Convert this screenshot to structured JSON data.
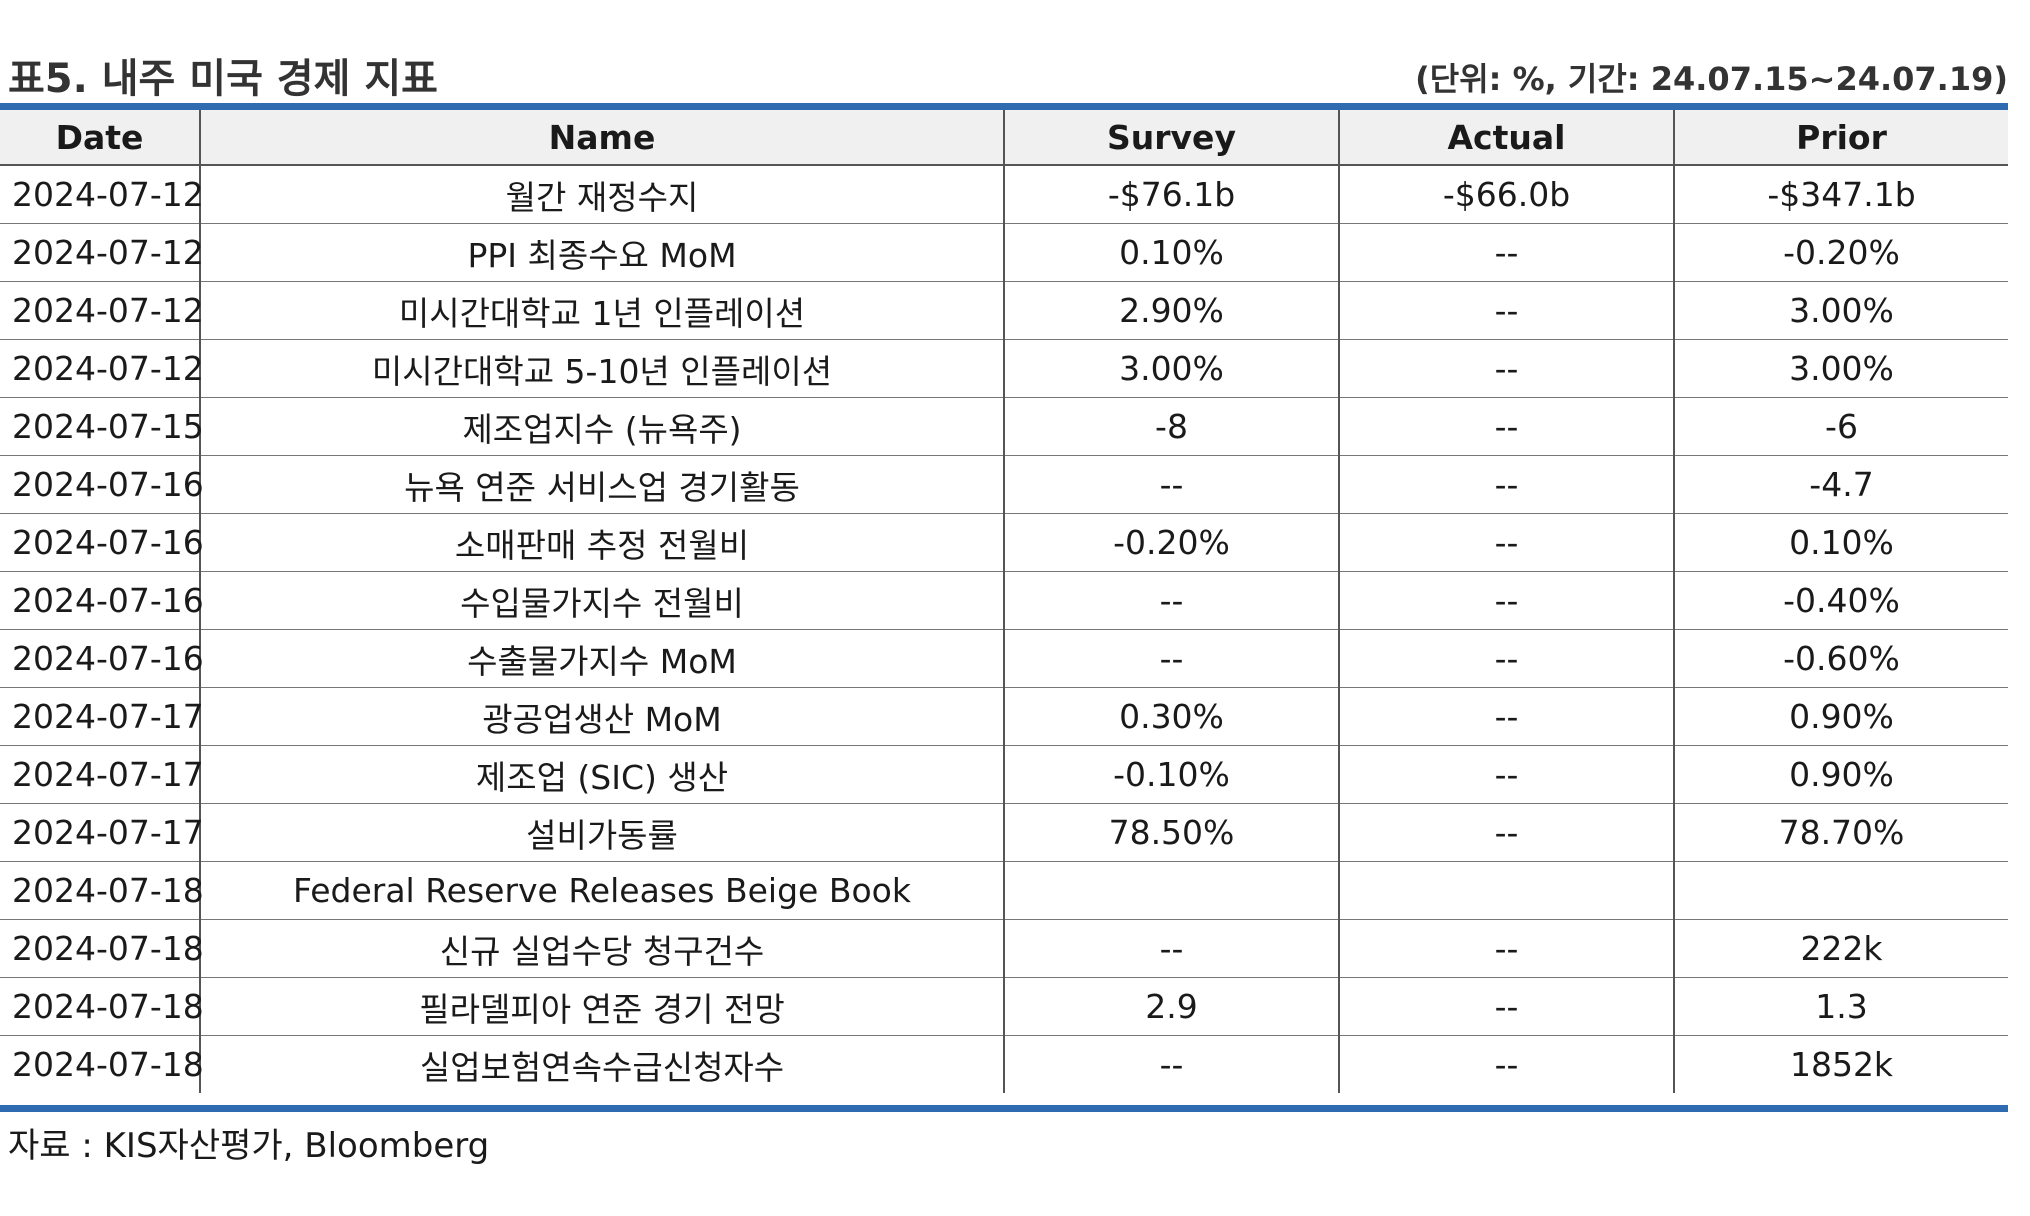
{
  "header": {
    "title": "표5. 내주 미국 경제 지표",
    "unit_note": "(단위: %, 기간: 24.07.15~24.07.19)"
  },
  "table": {
    "columns": [
      "Date",
      "Name",
      "Survey",
      "Actual",
      "Prior"
    ],
    "rows": [
      [
        "2024-07-12",
        "월간 재정수지",
        "-$76.1b",
        "-$66.0b",
        "-$347.1b"
      ],
      [
        "2024-07-12",
        "PPI 최종수요 MoM",
        "0.10%",
        "--",
        "-0.20%"
      ],
      [
        "2024-07-12",
        "미시간대학교 1년 인플레이션",
        "2.90%",
        "--",
        "3.00%"
      ],
      [
        "2024-07-12",
        "미시간대학교 5-10년 인플레이션",
        "3.00%",
        "--",
        "3.00%"
      ],
      [
        "2024-07-15",
        "제조업지수 (뉴욕주)",
        "-8",
        "--",
        "-6"
      ],
      [
        "2024-07-16",
        "뉴욕 연준 서비스업 경기활동",
        "--",
        "--",
        "-4.7"
      ],
      [
        "2024-07-16",
        "소매판매 추정 전월비",
        "-0.20%",
        "--",
        "0.10%"
      ],
      [
        "2024-07-16",
        "수입물가지수 전월비",
        "--",
        "--",
        "-0.40%"
      ],
      [
        "2024-07-16",
        "수출물가지수 MoM",
        "--",
        "--",
        "-0.60%"
      ],
      [
        "2024-07-17",
        "광공업생산 MoM",
        "0.30%",
        "--",
        "0.90%"
      ],
      [
        "2024-07-17",
        "제조업 (SIC) 생산",
        "-0.10%",
        "--",
        "0.90%"
      ],
      [
        "2024-07-17",
        "설비가동률",
        "78.50%",
        "--",
        "78.70%"
      ],
      [
        "2024-07-18",
        "Federal Reserve Releases Beige Book",
        "",
        "",
        ""
      ],
      [
        "2024-07-18",
        "신규 실업수당 청구건수",
        "--",
        "--",
        "222k"
      ],
      [
        "2024-07-18",
        "필라델피아 연준 경기 전망",
        "2.9",
        "--",
        "1.3"
      ],
      [
        "2024-07-18",
        "실업보험연속수급신청자수",
        "--",
        "--",
        "1852k"
      ]
    ]
  },
  "footer": {
    "source": "자료 : KIS자산평가, Bloomberg"
  },
  "colors": {
    "accent_rule": "#2e6bb0",
    "header_bg": "#f0f0f0"
  }
}
